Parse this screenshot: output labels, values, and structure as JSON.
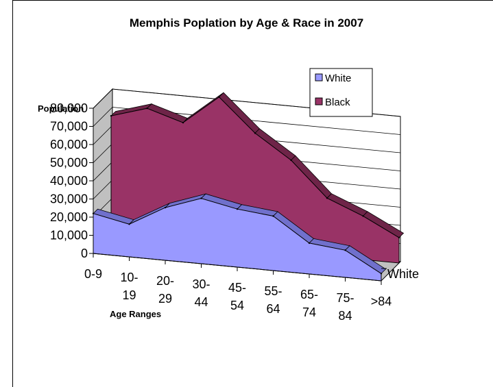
{
  "chart_data": {
    "type": "area",
    "title": "Memphis Poplation by Age & Race in 2007",
    "xlabel": "Age Ranges",
    "ylabel": "Population",
    "depth_label": "White",
    "categories": [
      "0-9",
      "10-19",
      "20-29",
      "30-44",
      "45-54",
      "55-64",
      "65-74",
      "75-84",
      ">84"
    ],
    "category_lines": [
      [
        "0-9"
      ],
      [
        "10-",
        "19"
      ],
      [
        "20-",
        "29"
      ],
      [
        "30-",
        "44"
      ],
      [
        "45-",
        "54"
      ],
      [
        "55-",
        "64"
      ],
      [
        "65-",
        "74"
      ],
      [
        "75-",
        "84"
      ],
      [
        ">84"
      ]
    ],
    "y_ticks": [
      "0",
      "10,000",
      "20,000",
      "30,000",
      "40,000",
      "50,000",
      "60,000",
      "70,000",
      "80,000"
    ],
    "ylim": [
      0,
      80000
    ],
    "series": [
      {
        "name": "White",
        "values": [
          22000,
          18000,
          29000,
          36000,
          32000,
          30000,
          17000,
          15000,
          4000
        ]
      },
      {
        "name": "Black",
        "values": [
          66000,
          72000,
          66000,
          82000,
          64000,
          51000,
          32000,
          24000,
          14000
        ]
      }
    ],
    "legend": {
      "position": "top-right",
      "entries": [
        "White",
        "Black"
      ]
    },
    "colors": {
      "White": "#9999ff",
      "Black": "#993366",
      "wall": "#c0c0c0",
      "back_wall": "#ffffff"
    },
    "grid": true,
    "view": "3-D area"
  }
}
